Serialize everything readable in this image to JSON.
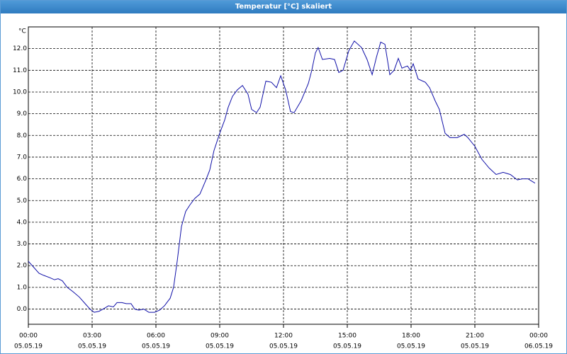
{
  "chart_data": {
    "type": "line",
    "title": "Temperatur [°C] skaliert",
    "ylabel": "°C",
    "x": [
      0,
      0.23,
      0.5,
      0.73,
      1.0,
      1.23,
      1.4,
      1.6,
      1.83,
      2.1,
      2.4,
      2.67,
      2.9,
      3.1,
      3.33,
      3.6,
      3.77,
      4.0,
      4.17,
      4.4,
      4.6,
      4.83,
      5.0,
      5.2,
      5.43,
      5.67,
      5.93,
      6.17,
      6.4,
      6.67,
      6.83,
      7.0,
      7.2,
      7.4,
      7.6,
      7.83,
      8.07,
      8.33,
      8.53,
      8.73,
      9.0,
      9.23,
      9.4,
      9.6,
      9.83,
      10.07,
      10.33,
      10.5,
      10.73,
      10.9,
      11.17,
      11.43,
      11.67,
      11.87,
      12.1,
      12.33,
      12.5,
      12.83,
      13.17,
      13.33,
      13.5,
      13.63,
      13.83,
      14.17,
      14.4,
      14.6,
      14.8,
      15.07,
      15.33,
      15.67,
      15.93,
      16.17,
      16.37,
      16.57,
      16.77,
      17.0,
      17.2,
      17.4,
      17.57,
      17.83,
      17.97,
      18.1,
      18.33,
      18.67,
      18.87,
      19.13,
      19.33,
      19.6,
      19.83,
      20.17,
      20.5,
      20.67,
      21.0,
      21.33,
      21.67,
      22.0,
      22.33,
      22.67,
      23.0,
      23.23,
      23.5,
      23.83
    ],
    "series": [
      {
        "color": "#1010a8",
        "values": [
          2.2,
          1.95,
          1.65,
          1.55,
          1.45,
          1.35,
          1.4,
          1.3,
          1.0,
          0.8,
          0.55,
          0.25,
          0.0,
          -0.15,
          -0.1,
          0.05,
          0.15,
          0.1,
          0.3,
          0.3,
          0.25,
          0.25,
          0.0,
          -0.05,
          0.0,
          -0.15,
          -0.15,
          -0.05,
          0.15,
          0.5,
          1.0,
          2.2,
          3.8,
          4.5,
          4.8,
          5.1,
          5.3,
          5.9,
          6.4,
          7.3,
          8.1,
          8.7,
          9.3,
          9.8,
          10.1,
          10.3,
          9.9,
          9.2,
          9.05,
          9.3,
          10.5,
          10.45,
          10.2,
          10.75,
          10.1,
          9.1,
          9.05,
          9.6,
          10.4,
          11.0,
          11.8,
          12.05,
          11.5,
          11.55,
          11.5,
          10.9,
          11.0,
          11.9,
          12.35,
          12.05,
          11.5,
          10.8,
          11.6,
          12.3,
          12.2,
          10.8,
          11.0,
          11.55,
          11.1,
          11.2,
          11.0,
          11.3,
          10.6,
          10.45,
          10.2,
          9.6,
          9.2,
          8.1,
          7.9,
          7.9,
          8.05,
          7.9,
          7.5,
          6.9,
          6.5,
          6.2,
          6.3,
          6.2,
          5.95,
          6.0,
          6.0,
          5.8
        ]
      }
    ],
    "xlim": [
      0,
      24
    ],
    "xticks": [
      {
        "value": 0,
        "label": [
          "00:00",
          "05.05.19"
        ]
      },
      {
        "value": 3,
        "label": [
          "03:00",
          "05.05.19"
        ]
      },
      {
        "value": 6,
        "label": [
          "06:00",
          "05.05.19"
        ]
      },
      {
        "value": 9,
        "label": [
          "09:00",
          "05.05.19"
        ]
      },
      {
        "value": 12,
        "label": [
          "12:00",
          "05.05.19"
        ]
      },
      {
        "value": 15,
        "label": [
          "15:00",
          "05.05.19"
        ]
      },
      {
        "value": 18,
        "label": [
          "18:00",
          "05.05.19"
        ]
      },
      {
        "value": 21,
        "label": [
          "21:00",
          "05.05.19"
        ]
      },
      {
        "value": 24,
        "label": [
          "00:00",
          "06.05.19"
        ]
      }
    ],
    "ylim": [
      -0.7,
      13.0
    ],
    "yticks": [
      {
        "value": 0,
        "label": "0.0"
      },
      {
        "value": 1,
        "label": "1.0"
      },
      {
        "value": 2,
        "label": "2.0"
      },
      {
        "value": 3,
        "label": "3.0"
      },
      {
        "value": 4,
        "label": "4.0"
      },
      {
        "value": 5,
        "label": "5.0"
      },
      {
        "value": 6,
        "label": "6.0"
      },
      {
        "value": 7,
        "label": "7.0"
      },
      {
        "value": 8,
        "label": "8.0"
      },
      {
        "value": 9,
        "label": "9.0"
      },
      {
        "value": 10,
        "label": "10.0"
      },
      {
        "value": 11,
        "label": "11.0"
      },
      {
        "value": 12,
        "label": "12.0"
      }
    ],
    "grid": true
  }
}
